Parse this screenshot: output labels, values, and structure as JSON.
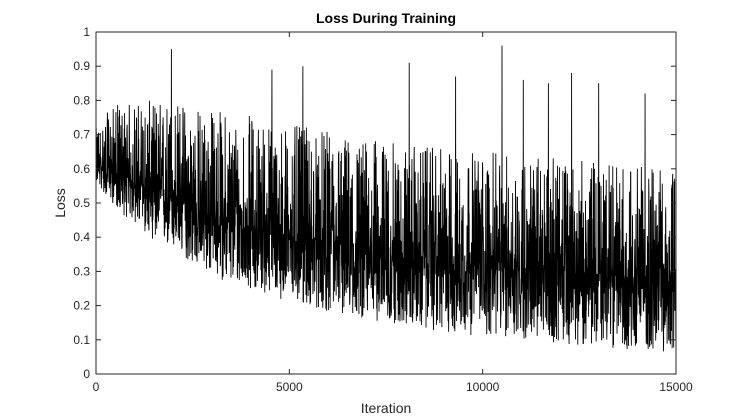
{
  "chart_data": {
    "type": "line",
    "title": "Loss During Training",
    "xlabel": "Iteration",
    "ylabel": "Loss",
    "xlim": [
      0,
      15000
    ],
    "ylim": [
      0,
      1
    ],
    "x_ticks": [
      0,
      5000,
      10000,
      15000
    ],
    "x_tick_labels": [
      "0",
      "5000",
      "10000",
      "15000"
    ],
    "y_ticks": [
      0,
      0.1,
      0.2,
      0.3,
      0.4,
      0.5,
      0.6,
      0.7,
      0.8,
      0.9,
      1
    ],
    "y_tick_labels": [
      "0",
      "0.1",
      "0.2",
      "0.3",
      "0.4",
      "0.5",
      "0.6",
      "0.7",
      "0.8",
      "0.9",
      "1"
    ],
    "grid": false,
    "line_color": "#000000",
    "series": [
      {
        "x": [
          0,
          250,
          500,
          750,
          1000,
          1500,
          2000,
          2500,
          3000,
          3500,
          4000,
          5000,
          6000,
          7000,
          8000,
          9000,
          10000,
          11000,
          12000,
          13000,
          14000,
          15000
        ],
        "y": [
          0.62,
          0.6,
          0.59,
          0.57,
          0.56,
          0.53,
          0.51,
          0.48,
          0.46,
          0.44,
          0.43,
          0.4,
          0.38,
          0.36,
          0.34,
          0.33,
          0.32,
          0.31,
          0.3,
          0.29,
          0.28,
          0.27
        ],
        "spread_low": [
          0.06,
          0.08,
          0.1,
          0.11,
          0.12,
          0.14,
          0.15,
          0.16,
          0.17,
          0.18,
          0.18,
          0.19,
          0.2,
          0.2,
          0.2,
          0.21,
          0.21,
          0.21,
          0.21,
          0.21,
          0.21,
          0.21
        ],
        "spread_high": [
          0.1,
          0.16,
          0.2,
          0.22,
          0.24,
          0.27,
          0.3,
          0.31,
          0.32,
          0.33,
          0.33,
          0.33,
          0.33,
          0.33,
          0.33,
          0.33,
          0.33,
          0.33,
          0.33,
          0.33,
          0.33,
          0.33
        ],
        "spikes": [
          {
            "x": 1950,
            "y": 0.95
          },
          {
            "x": 4550,
            "y": 0.89
          },
          {
            "x": 5350,
            "y": 0.9
          },
          {
            "x": 8100,
            "y": 0.91
          },
          {
            "x": 9300,
            "y": 0.87
          },
          {
            "x": 10500,
            "y": 0.96
          },
          {
            "x": 11050,
            "y": 0.86
          },
          {
            "x": 11700,
            "y": 0.85
          },
          {
            "x": 12300,
            "y": 0.88
          },
          {
            "x": 13000,
            "y": 0.85
          },
          {
            "x": 14200,
            "y": 0.82
          }
        ]
      }
    ]
  }
}
